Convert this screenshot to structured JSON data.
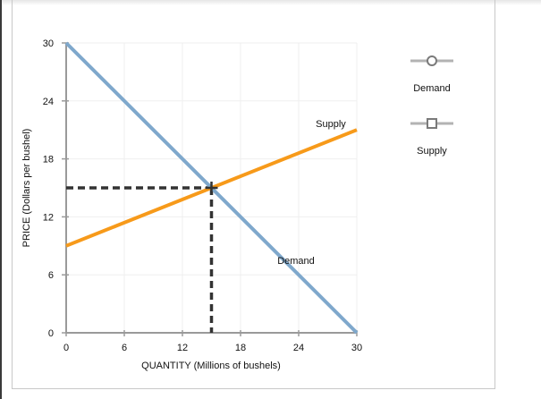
{
  "chart_data": {
    "type": "line",
    "title": "",
    "xlabel": "QUANTITY (Millions of bushels)",
    "ylabel": "PRICE (Dollars per bushel)",
    "xlim": [
      0,
      30
    ],
    "ylim": [
      0,
      30
    ],
    "x_ticks": [
      "0",
      "6",
      "12",
      "18",
      "24",
      "30"
    ],
    "y_ticks": [
      "0",
      "6",
      "12",
      "18",
      "24",
      "30"
    ],
    "grid": true,
    "legend_position": "right",
    "series": [
      {
        "name": "Demand",
        "color": "#7fa8cc",
        "marker": "circle",
        "points": [
          [
            0,
            30
          ],
          [
            30,
            0
          ]
        ],
        "label": "Demand"
      },
      {
        "name": "Supply",
        "color": "#f79a1a",
        "marker": "square",
        "points": [
          [
            0,
            9
          ],
          [
            30,
            21
          ]
        ],
        "label": "Supply"
      }
    ],
    "equilibrium": {
      "quantity": 15,
      "price": 15,
      "marker": "cross",
      "dashed_guides": true
    }
  },
  "legend": {
    "items": [
      {
        "label": "Demand",
        "icon": "circle-marker-line-icon"
      },
      {
        "label": "Supply",
        "icon": "square-marker-line-icon"
      }
    ]
  }
}
